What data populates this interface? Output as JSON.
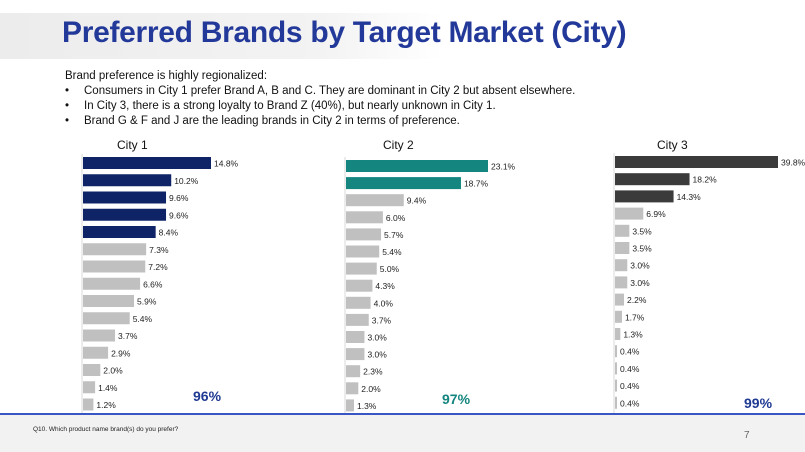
{
  "title": "Preferred Brands by Target Market (City)",
  "intro": {
    "lead": "Brand preference is highly regionalized:",
    "bullets": [
      "Consumers in City 1 prefer Brand A, B and C. They are dominant in City 2 but absent elsewhere.",
      "In City 3, there is a strong loyalty to Brand Z (40%), but nearly unknown in City 1.",
      "Brand G & F and J are the leading brands in City 2 in terms of preference."
    ]
  },
  "chart_data": [
    {
      "type": "bar",
      "orientation": "horizontal",
      "title": "City 1",
      "total_label": "96%",
      "highlight_count": 5,
      "highlight_color": "#0f2466",
      "base_color": "#c0c0c0",
      "total_color": "#1f3a93",
      "values": [
        14.8,
        10.2,
        9.6,
        9.6,
        8.4,
        7.3,
        7.2,
        6.6,
        5.9,
        5.4,
        3.7,
        2.9,
        2.0,
        1.4,
        1.2
      ],
      "labels": [
        "14.8%",
        "10.2%",
        "9.6%",
        "9.6%",
        "8.4%",
        "7.3%",
        "7.2%",
        "6.6%",
        "5.9%",
        "5.4%",
        "3.7%",
        "2.9%",
        "2.0%",
        "1.4%",
        "1.2%"
      ]
    },
    {
      "type": "bar",
      "orientation": "horizontal",
      "title": "City 2",
      "total_label": "97%",
      "highlight_count": 2,
      "highlight_color": "#14857f",
      "base_color": "#c0c0c0",
      "total_color": "#14857f",
      "values": [
        23.1,
        18.7,
        9.4,
        6.0,
        5.7,
        5.4,
        5.0,
        4.3,
        4.0,
        3.7,
        3.0,
        3.0,
        2.3,
        2.0,
        1.3
      ],
      "labels": [
        "23.1%",
        "18.7%",
        "9.4%",
        "6.0%",
        "5.7%",
        "5.4%",
        "5.0%",
        "4.3%",
        "4.0%",
        "3.7%",
        "3.0%",
        "3.0%",
        "2.3%",
        "2.0%",
        "1.3%"
      ]
    },
    {
      "type": "bar",
      "orientation": "horizontal",
      "title": "City 3",
      "total_label": "99%",
      "highlight_count": 3,
      "highlight_color": "#3b3b3b",
      "base_color": "#c0c0c0",
      "total_color": "#1f3a93",
      "values": [
        39.8,
        18.2,
        14.3,
        6.9,
        3.5,
        3.5,
        3.0,
        3.0,
        2.2,
        1.7,
        1.3,
        0.4,
        0.4,
        0.4,
        0.4
      ],
      "labels": [
        "39.8%",
        "18.2%",
        "14.3%",
        "6.9%",
        "3.5%",
        "3.5%",
        "3.0%",
        "3.0%",
        "2.2%",
        "1.7%",
        "1.3%",
        "0.4%",
        "0.4%",
        "0.4%",
        "0.4%"
      ]
    }
  ],
  "footer": {
    "question": "Q10. Which product name brand(s) do you prefer?",
    "page": "7"
  }
}
